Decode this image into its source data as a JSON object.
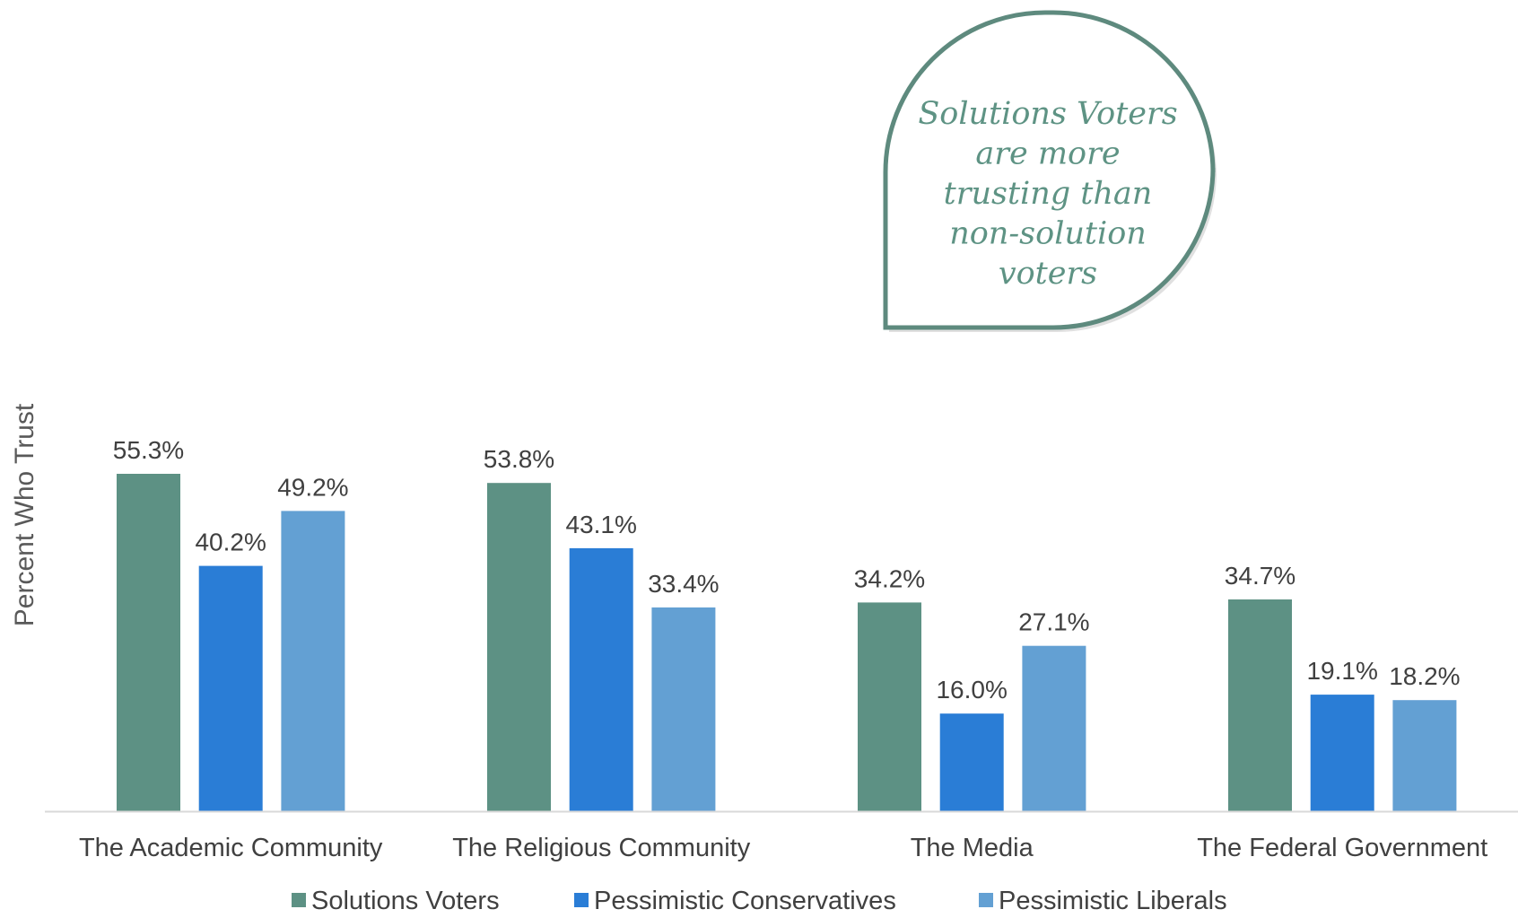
{
  "chart_data": {
    "type": "bar",
    "title": "",
    "xlabel": "",
    "ylabel": "Percent Who Trust",
    "ylim": [
      0,
      60
    ],
    "grid": false,
    "legend_position": "bottom",
    "categories": [
      "The Academic Community",
      "The Religious Community",
      "The Media",
      "The Federal Government"
    ],
    "series": [
      {
        "name": "Solutions Voters",
        "color": "#5d9184",
        "values": [
          55.3,
          53.8,
          34.2,
          34.7
        ],
        "labels": [
          "55.3%",
          "53.8%",
          "34.2%",
          "34.7%"
        ]
      },
      {
        "name": "Pessimistic Conservatives",
        "color": "#2a7dd6",
        "values": [
          40.2,
          43.1,
          16.0,
          19.1
        ],
        "labels": [
          "40.2%",
          "43.1%",
          "16.0%",
          "19.1%"
        ]
      },
      {
        "name": "Pessimistic Liberals",
        "color": "#63a0d3",
        "values": [
          49.2,
          33.4,
          27.1,
          18.2
        ],
        "labels": [
          "49.2%",
          "33.4%",
          "27.1%",
          "18.2%"
        ]
      }
    ],
    "annotation": {
      "lines": [
        "Solutions Voters",
        "are more",
        "trusting than",
        "non-solution",
        "voters"
      ],
      "border_color": "#5e8a7e",
      "text_color": "#5e9384"
    }
  }
}
